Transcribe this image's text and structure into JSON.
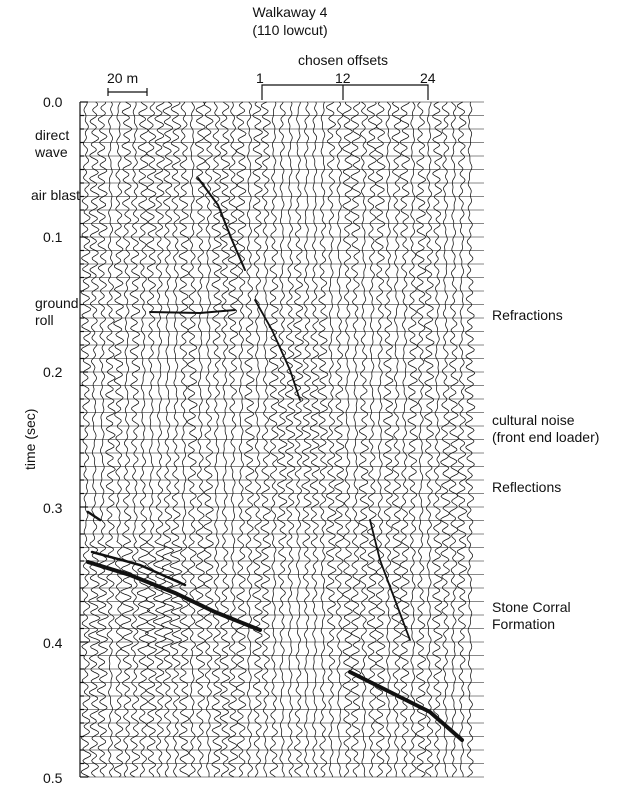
{
  "figure": {
    "title_line1": "Walkaway 4",
    "title_line2": "(110 lowcut)",
    "offsets_label": "chosen offsets",
    "offset_ticks": [
      "1",
      "12",
      "24"
    ],
    "scale_label": "20 m",
    "y_axis_label": "time (sec)",
    "time_ticks": [
      "0.0",
      "0.1",
      "0.2",
      "0.3",
      "0.4",
      "0.5"
    ],
    "left_annotations": {
      "direct_wave_1": "direct",
      "direct_wave_2": "wave",
      "air_blast": "air blast",
      "ground_roll_1": "ground",
      "ground_roll_2": "roll"
    },
    "right_annotations": {
      "refractions": "Refractions",
      "cultural_noise_1": "cultural noise",
      "cultural_noise_2": "(front end loader)",
      "reflections": "Reflections",
      "stone_corral_1": "Stone Corral",
      "stone_corral_2": "Formation"
    },
    "trace_count": 48,
    "time_range_sec": [
      0.0,
      0.5
    ],
    "line_color": "#111111"
  }
}
